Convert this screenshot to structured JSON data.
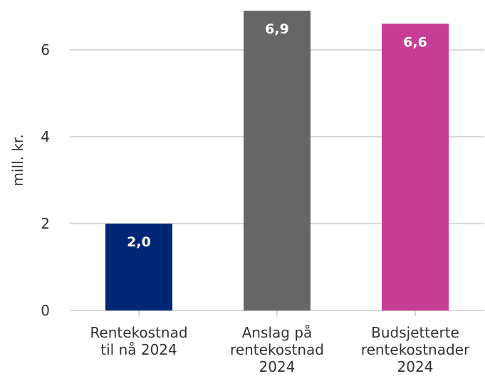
{
  "chart_data": {
    "type": "bar",
    "y_label": "mill. kr.",
    "categories": [
      "Rentekostnad\ntil nå 2024",
      "Anslag på\nrentekostnad\n2024",
      "Budsjetterte\nrentekostnader\n2024"
    ],
    "values": [
      2.0,
      6.9,
      6.6
    ],
    "value_labels": [
      "2,0",
      "6,9",
      "6,6"
    ],
    "colors": [
      "#002776",
      "#666666",
      "#c83d96"
    ],
    "ylim": [
      0,
      7
    ],
    "yticks": [
      0,
      2,
      4,
      6
    ],
    "grid": true
  }
}
